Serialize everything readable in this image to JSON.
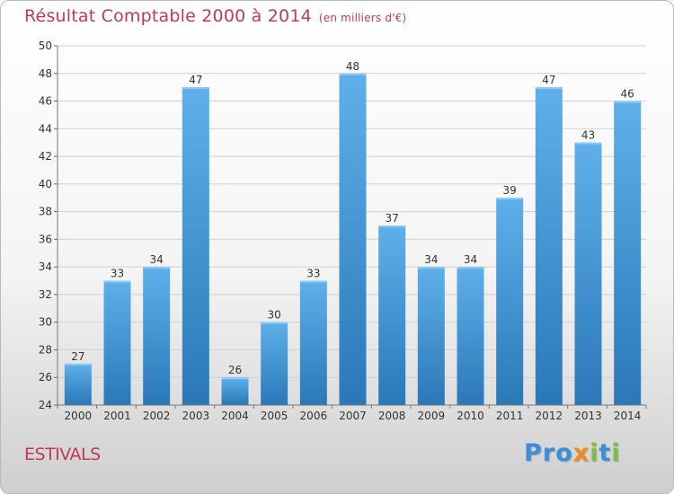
{
  "header": {
    "title": "Résultat Comptable 2000 à 2014",
    "unit": "(en milliers d'€)"
  },
  "footer": {
    "commune": "ESTIVALS",
    "logo_text": "Proxiti",
    "logo_letters": [
      {
        "ch": "P",
        "color": "#3a8fd8"
      },
      {
        "ch": "r",
        "color": "#3a8fd8"
      },
      {
        "ch": "o",
        "color": "#3a8fd8"
      },
      {
        "ch": "x",
        "color": "#f08a1c"
      },
      {
        "ch": "i",
        "color": "#7ac143"
      },
      {
        "ch": "t",
        "color": "#3a8fd8"
      },
      {
        "ch": "i",
        "color": "#7ac143"
      }
    ]
  },
  "colors": {
    "accent": "#c03a55",
    "bar_top": "#5fb0ea",
    "bar_bottom": "#2a78b8",
    "grid": "#d0d0d0",
    "axis_text": "#333333"
  },
  "chart_data": {
    "type": "bar",
    "categories": [
      "2000",
      "2001",
      "2002",
      "2003",
      "2004",
      "2005",
      "2006",
      "2007",
      "2008",
      "2009",
      "2010",
      "2011",
      "2012",
      "2013",
      "2014"
    ],
    "values": [
      27,
      33,
      34,
      47,
      26,
      30,
      33,
      48,
      37,
      34,
      34,
      39,
      47,
      43,
      46
    ],
    "data_labels": [
      "27",
      "33",
      "34",
      "47",
      "26",
      "30",
      "33",
      "48",
      "37",
      "34",
      "34",
      "39",
      "47",
      "43",
      "46"
    ],
    "ylim": [
      24,
      50
    ],
    "yticks": [
      24,
      26,
      28,
      30,
      32,
      34,
      36,
      38,
      40,
      42,
      44,
      46,
      48,
      50
    ],
    "grid": true
  }
}
